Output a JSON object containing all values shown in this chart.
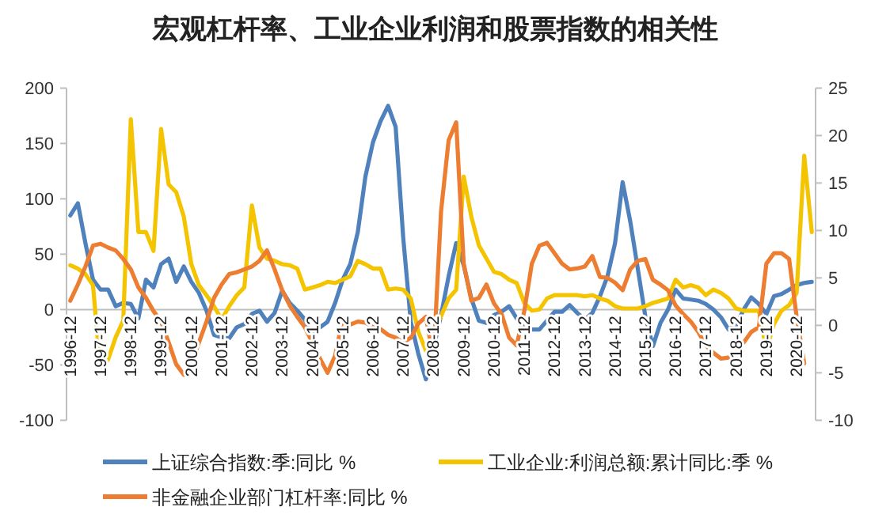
{
  "chart_data": {
    "type": "line",
    "title": "宏观杠杆率、工业企业利润和股票指数的相关性",
    "categories": [
      "1996-12",
      null,
      null,
      null,
      "1997-12",
      null,
      null,
      null,
      "1998-12",
      null,
      null,
      null,
      "1999-12",
      null,
      null,
      null,
      "2000-12",
      null,
      null,
      null,
      "2001-12",
      null,
      null,
      null,
      "2002-12",
      null,
      null,
      null,
      "2003-12",
      null,
      null,
      null,
      "2004-12",
      null,
      null,
      null,
      "2005-12",
      null,
      null,
      null,
      "2006-12",
      null,
      null,
      null,
      "2007-12",
      null,
      null,
      null,
      "2008-12",
      null,
      null,
      null,
      "2009-12",
      null,
      null,
      null,
      "2010-12",
      null,
      null,
      null,
      "2011-12",
      null,
      null,
      null,
      "2012-12",
      null,
      null,
      null,
      "2013-12",
      null,
      null,
      null,
      "2014-12",
      null,
      null,
      null,
      "2015-12",
      null,
      null,
      null,
      "2016-12",
      null,
      null,
      null,
      "2017-12",
      null,
      null,
      null,
      "2018-12",
      null,
      null,
      null,
      "2019-12",
      null,
      null,
      null,
      "2020-12",
      null,
      null
    ],
    "series": [
      {
        "name": "上证综合指数:季:同比 %",
        "color": "#4f81bd",
        "axis": "y",
        "values": [
          85,
          96,
          60,
          27,
          18,
          18,
          3,
          6,
          5,
          -8,
          27,
          20,
          41,
          46,
          25,
          39,
          25,
          15,
          -1,
          -23,
          -25,
          -26,
          -16,
          -13,
          -4,
          -1,
          -11,
          -3,
          17,
          6,
          -1,
          -9,
          -23,
          -16,
          -11,
          6,
          27,
          41,
          70,
          120,
          151,
          170,
          184,
          165,
          65,
          -11,
          -40,
          -63,
          -35,
          -5,
          30,
          60,
          40,
          10,
          -10,
          -12,
          -5,
          -2,
          3,
          -8,
          -17,
          -18,
          -18,
          -10,
          -2,
          -2,
          4,
          -3,
          -9,
          -3,
          12,
          30,
          60,
          115,
          80,
          37,
          -6,
          -33,
          -12,
          0,
          18,
          10,
          9,
          8,
          5,
          0,
          -7,
          -18,
          -14,
          0,
          11,
          5,
          -4,
          12,
          14,
          18,
          22,
          24,
          25
        ]
      },
      {
        "name": "工业企业:利润总额:累计同比:季 %",
        "color": "#f5c400",
        "axis": "y",
        "values": [
          40,
          37,
          32,
          22,
          -56,
          -45,
          -25,
          -10,
          172,
          70,
          70,
          53,
          163,
          113,
          106,
          84,
          41,
          22,
          13,
          3,
          -9,
          3,
          13,
          20,
          94,
          56,
          46,
          44,
          41,
          40,
          37,
          18,
          20,
          22,
          25,
          24,
          27,
          30,
          44,
          41,
          37,
          37,
          18,
          19,
          18,
          10,
          -20,
          -37,
          -20,
          -6,
          10,
          18,
          120,
          84,
          58,
          46,
          34,
          32,
          27,
          24,
          6,
          -1,
          0,
          10,
          13,
          13,
          13,
          13,
          12,
          13,
          10,
          8,
          3,
          1,
          1,
          1,
          3,
          6,
          8,
          10,
          27,
          20,
          22,
          20,
          13,
          18,
          15,
          10,
          1,
          -1,
          -1,
          -1,
          -36,
          -13,
          -1,
          4,
          15,
          139,
          70
        ]
      },
      {
        "name": "非金融企业部门杠杆率:同比 %",
        "color": "#ed7d31",
        "axis": "y2",
        "values": [
          2.6,
          4.3,
          6.2,
          8.4,
          8.6,
          8.2,
          7.9,
          7.0,
          5.9,
          4.0,
          2.9,
          1.5,
          0.4,
          -1.8,
          -4.1,
          -5.2,
          -4.1,
          -1.8,
          0.4,
          2.9,
          4.3,
          5.4,
          5.6,
          5.9,
          6.2,
          6.8,
          7.9,
          5.9,
          3.7,
          2.1,
          0.9,
          -0.2,
          -1.8,
          -3.5,
          -5.0,
          -3.2,
          0.7,
          0.1,
          0.4,
          0.3,
          -0.2,
          -0.4,
          -1,
          -1.3,
          -1.8,
          -1.3,
          0.2,
          0.9,
          -3.5,
          12,
          19.5,
          21.4,
          6.5,
          2.6,
          2.9,
          4.3,
          2.3,
          1.2,
          -1.3,
          -2.1,
          1.5,
          6.5,
          8.4,
          8.7,
          7.6,
          6.5,
          5.9,
          6,
          6.2,
          7.3,
          5.1,
          5,
          4.5,
          3.7,
          5.9,
          6.8,
          7.0,
          4.8,
          4.3,
          3.7,
          2.1,
          1.2,
          0.4,
          -0.7,
          -2.1,
          -2.9,
          -3.5,
          -3.4,
          -2.8,
          -1.8,
          -0.7,
          -0.2,
          6.5,
          7.6,
          7.6,
          7.0,
          0.9,
          -4.0,
          null
        ]
      }
    ],
    "ylim": [
      -100,
      200
    ],
    "yticks": [
      -100,
      -50,
      0,
      50,
      100,
      150,
      200
    ],
    "y2lim": [
      -10,
      25
    ],
    "y2ticks": [
      -10,
      -5,
      0,
      5,
      10,
      15,
      20,
      25
    ],
    "legend": "bottom",
    "marker": "none",
    "line_style": "solid"
  }
}
